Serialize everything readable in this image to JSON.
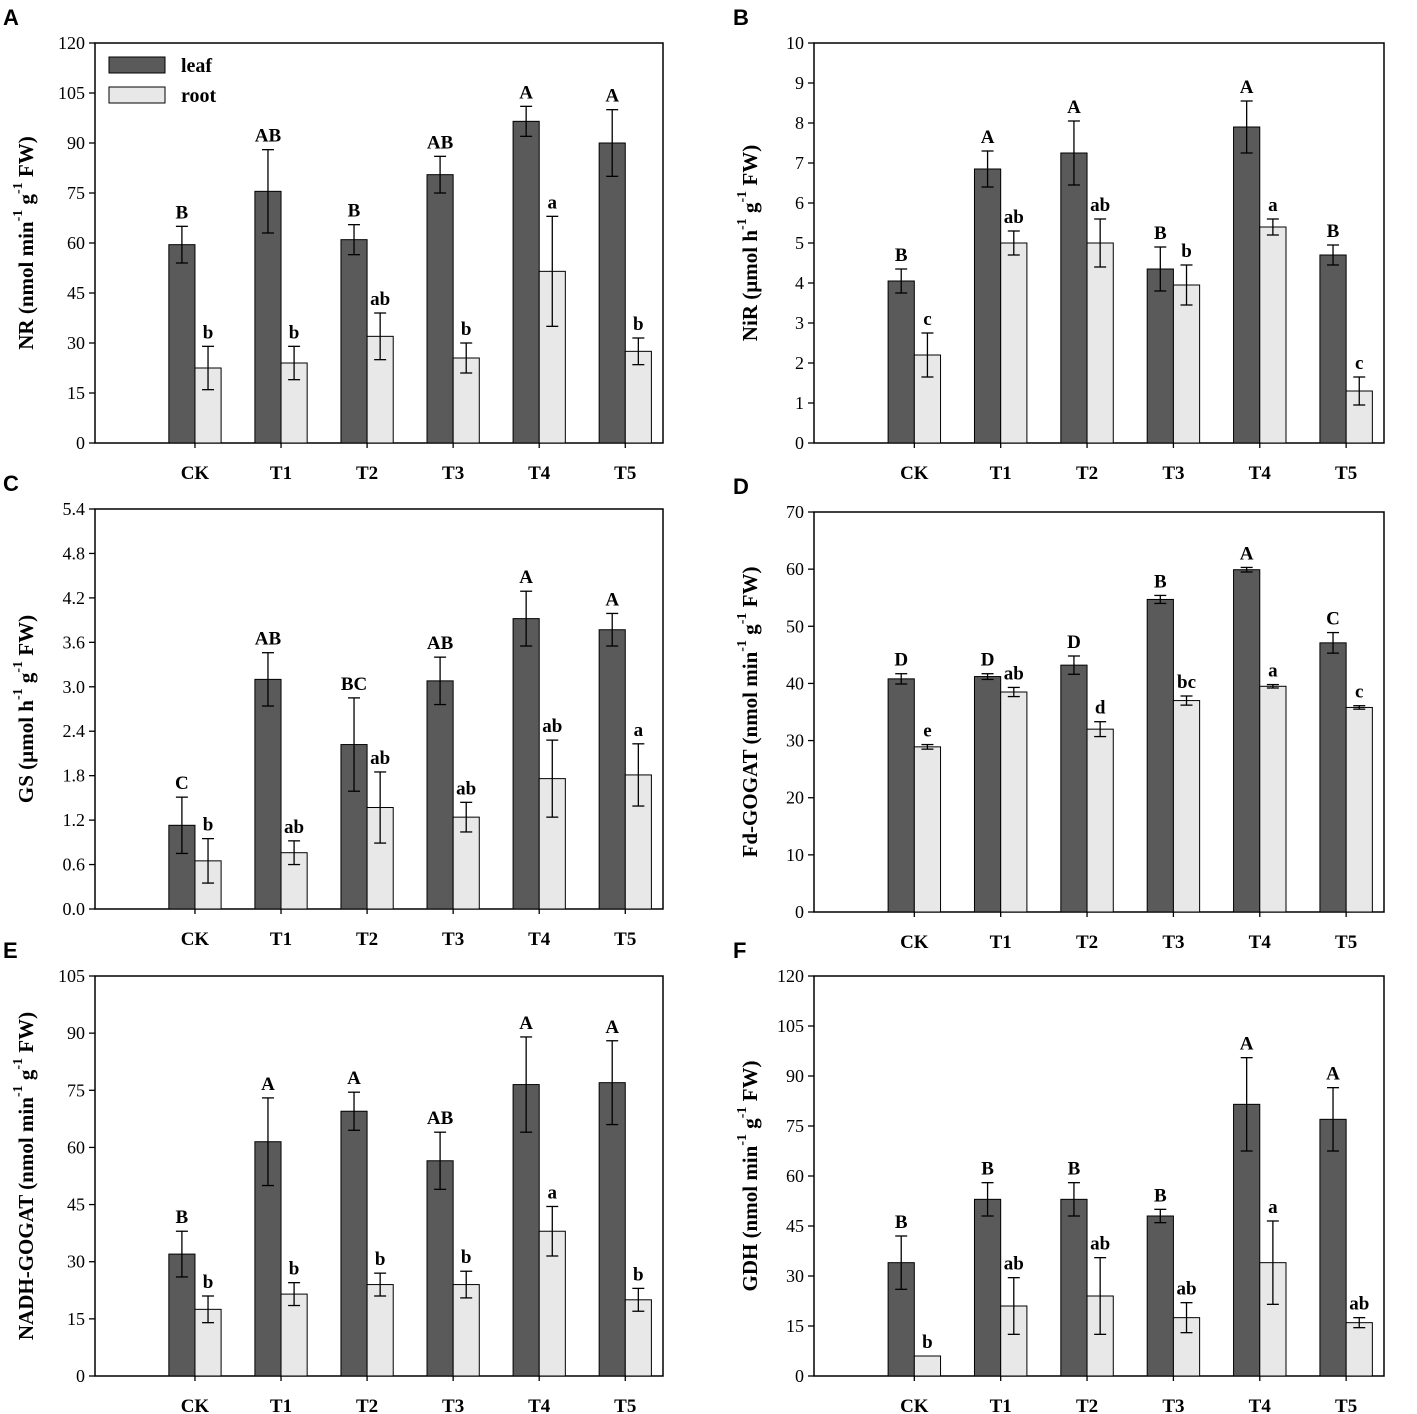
{
  "colors": {
    "leaf": "#5a5a5a",
    "root": "#e8e8e8",
    "axis": "#000000"
  },
  "chart_data": [
    {
      "panel": "A",
      "type": "bar",
      "ylabel": "NR (nmol min",
      "ylabel_sup1": "-1",
      "ylabel_mid": " g",
      "ylabel_sup2": "-1",
      "ylabel_end": " FW)",
      "ylim": [
        0,
        120
      ],
      "ytick_step": 15,
      "ytick_decimals": 0,
      "categories": [
        "CK",
        "T1",
        "T2",
        "T3",
        "T4",
        "T5"
      ],
      "legend": {
        "show": true,
        "position": "top-left",
        "entries": [
          "leaf",
          "root"
        ]
      },
      "series": [
        {
          "name": "leaf",
          "values": [
            59.5,
            75.5,
            61,
            80.5,
            96.5,
            90
          ],
          "errors": [
            5.5,
            12.5,
            4.5,
            5.5,
            4.5,
            10
          ],
          "letters": [
            "B",
            "AB",
            "B",
            "AB",
            "A",
            "A"
          ]
        },
        {
          "name": "root",
          "values": [
            22.5,
            24,
            32,
            25.5,
            51.5,
            27.5
          ],
          "errors": [
            6.5,
            5,
            7,
            4.5,
            16.5,
            4
          ],
          "letters": [
            "b",
            "b",
            "ab",
            "b",
            "a",
            "b"
          ]
        }
      ]
    },
    {
      "panel": "B",
      "type": "bar",
      "ylabel": "NiR (µmol h",
      "ylabel_sup1": "-1",
      "ylabel_mid": " g",
      "ylabel_sup2": "-1",
      "ylabel_end": " FW)",
      "ylim": [
        0,
        10
      ],
      "ytick_step": 1,
      "ytick_decimals": 0,
      "categories": [
        "CK",
        "T1",
        "T2",
        "T3",
        "T4",
        "T5"
      ],
      "legend": {
        "show": false
      },
      "series": [
        {
          "name": "leaf",
          "values": [
            4.05,
            6.85,
            7.25,
            4.35,
            7.9,
            4.7
          ],
          "errors": [
            0.3,
            0.45,
            0.8,
            0.55,
            0.65,
            0.25
          ],
          "letters": [
            "B",
            "A",
            "A",
            "B",
            "A",
            "B"
          ]
        },
        {
          "name": "root",
          "values": [
            2.2,
            5.0,
            5.0,
            3.95,
            5.4,
            1.3
          ],
          "errors": [
            0.55,
            0.3,
            0.6,
            0.5,
            0.2,
            0.35
          ],
          "letters": [
            "c",
            "ab",
            "ab",
            "b",
            "a",
            "c"
          ]
        }
      ]
    },
    {
      "panel": "C",
      "type": "bar",
      "ylabel": "GS (µmol h",
      "ylabel_sup1": "-1",
      "ylabel_mid": " g",
      "ylabel_sup2": "-1",
      "ylabel_end": " FW)",
      "ylim": [
        0,
        5.4
      ],
      "ytick_step": 0.6,
      "ytick_decimals": 1,
      "categories": [
        "CK",
        "T1",
        "T2",
        "T3",
        "T4",
        "T5"
      ],
      "legend": {
        "show": false
      },
      "series": [
        {
          "name": "leaf",
          "values": [
            1.13,
            3.1,
            2.22,
            3.08,
            3.92,
            3.77
          ],
          "errors": [
            0.38,
            0.36,
            0.63,
            0.32,
            0.37,
            0.22
          ],
          "letters": [
            "C",
            "AB",
            "BC",
            "AB",
            "A",
            "A"
          ]
        },
        {
          "name": "root",
          "values": [
            0.65,
            0.76,
            1.37,
            1.24,
            1.76,
            1.81
          ],
          "errors": [
            0.3,
            0.16,
            0.48,
            0.2,
            0.52,
            0.42
          ],
          "letters": [
            "b",
            "ab",
            "ab",
            "ab",
            "ab",
            "a"
          ]
        }
      ]
    },
    {
      "panel": "D",
      "type": "bar",
      "ylabel": "Fd-GOGAT (nmol min",
      "ylabel_sup1": "-1",
      "ylabel_mid": " g",
      "ylabel_sup2": "-1",
      "ylabel_end": " FW)",
      "ylim": [
        0,
        70
      ],
      "ytick_step": 10,
      "ytick_decimals": 0,
      "categories": [
        "CK",
        "T1",
        "T2",
        "T3",
        "T4",
        "T5"
      ],
      "legend": {
        "show": false
      },
      "series": [
        {
          "name": "leaf",
          "values": [
            40.8,
            41.2,
            43.2,
            54.7,
            59.9,
            47.1
          ],
          "errors": [
            0.9,
            0.5,
            1.6,
            0.7,
            0.4,
            1.8
          ],
          "letters": [
            "D",
            "D",
            "D",
            "B",
            "A",
            "C"
          ]
        },
        {
          "name": "root",
          "values": [
            28.9,
            38.5,
            32.0,
            37.0,
            39.5,
            35.8
          ],
          "errors": [
            0.4,
            0.8,
            1.3,
            0.8,
            0.3,
            0.3
          ],
          "letters": [
            "e",
            "ab",
            "d",
            "bc",
            "a",
            "c"
          ]
        }
      ]
    },
    {
      "panel": "E",
      "type": "bar",
      "ylabel": "NADH-GOGAT (nmol min",
      "ylabel_sup1": "-1",
      "ylabel_mid": " g",
      "ylabel_sup2": "-1",
      "ylabel_end": " FW)",
      "ylim": [
        0,
        105
      ],
      "ytick_step": 15,
      "ytick_decimals": 0,
      "categories": [
        "CK",
        "T1",
        "T2",
        "T3",
        "T4",
        "T5"
      ],
      "legend": {
        "show": false
      },
      "series": [
        {
          "name": "leaf",
          "values": [
            32,
            61.5,
            69.5,
            56.5,
            76.5,
            77
          ],
          "errors": [
            6,
            11.5,
            5,
            7.5,
            12.5,
            11
          ],
          "letters": [
            "B",
            "A",
            "A",
            "AB",
            "A",
            "A"
          ]
        },
        {
          "name": "root",
          "values": [
            17.5,
            21.5,
            24,
            24,
            38,
            20
          ],
          "errors": [
            3.5,
            3,
            3,
            3.5,
            6.5,
            3
          ],
          "letters": [
            "b",
            "b",
            "b",
            "b",
            "a",
            "b"
          ]
        }
      ]
    },
    {
      "panel": "F",
      "type": "bar",
      "ylabel": "GDH (nmol min",
      "ylabel_sup1": "-1",
      "ylabel_mid": " g",
      "ylabel_sup2": "-1",
      "ylabel_end": " FW)",
      "ylim": [
        0,
        120
      ],
      "ytick_step": 15,
      "ytick_decimals": 0,
      "categories": [
        "CK",
        "T1",
        "T2",
        "T3",
        "T4",
        "T5"
      ],
      "legend": {
        "show": false
      },
      "series": [
        {
          "name": "leaf",
          "values": [
            34,
            53,
            53,
            48,
            81.5,
            77
          ],
          "errors": [
            8,
            5,
            5,
            2,
            14,
            9.5
          ],
          "letters": [
            "B",
            "B",
            "B",
            "B",
            "A",
            "A"
          ]
        },
        {
          "name": "root",
          "values": [
            6,
            21,
            24,
            17.5,
            34,
            16
          ],
          "errors": [
            0,
            8.5,
            11.5,
            4.5,
            12.5,
            1.5
          ],
          "letters": [
            "b",
            "ab",
            "ab",
            "ab",
            "a",
            "ab"
          ]
        }
      ]
    }
  ]
}
